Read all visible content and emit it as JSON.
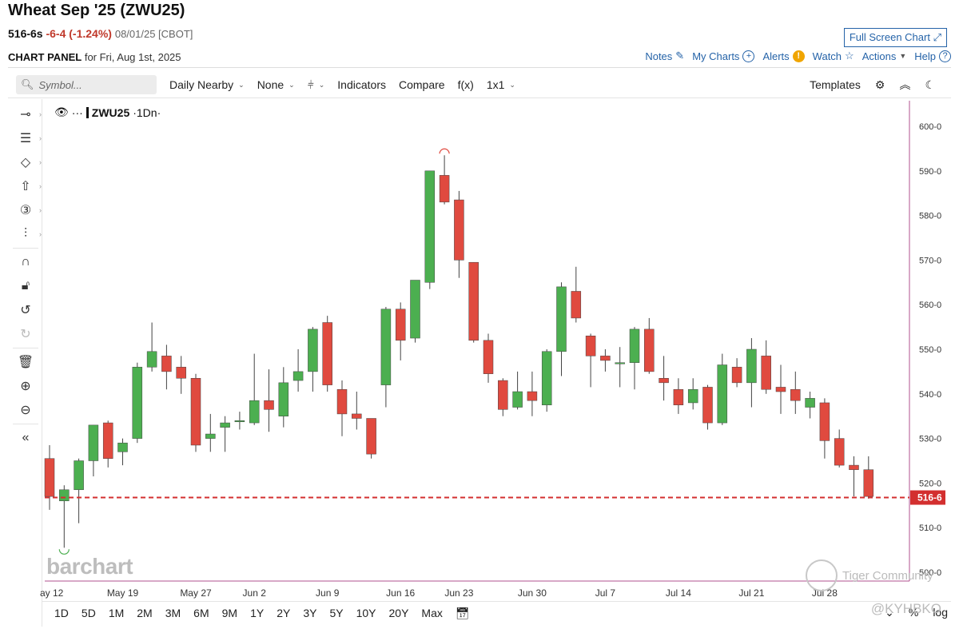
{
  "header": {
    "title": "Wheat Sep '25 (ZWU25)",
    "last": "516-6s",
    "change": "-6-4 (-1.24%)",
    "meta": "08/01/25 [CBOT]",
    "fullscreen_label": "Full Screen Chart",
    "panel_label": "CHART PANEL",
    "panel_date": "for Fri, Aug 1st, 2025"
  },
  "top_links": {
    "notes": "Notes",
    "mycharts": "My Charts",
    "alerts": "Alerts",
    "watch": "Watch",
    "actions": "Actions",
    "help": "Help"
  },
  "toolbar": {
    "search_placeholder": "Symbol...",
    "period": "Daily Nearby",
    "none": "None",
    "indicators": "Indicators",
    "compare": "Compare",
    "fx": "f(x)",
    "layout": "1x1",
    "templates": "Templates"
  },
  "legend": {
    "symbol": "ZWU25",
    "interval": "·1Dn·"
  },
  "ranges": [
    "1D",
    "5D",
    "1M",
    "2M",
    "3M",
    "6M",
    "9M",
    "1Y",
    "2Y",
    "3Y",
    "5Y",
    "10Y",
    "20Y",
    "Max"
  ],
  "bottom_right": {
    "pct": "%",
    "log": "log"
  },
  "watermarks": {
    "brand": "barchart",
    "community": "Tiger Community",
    "handle": "@KYHBKO"
  },
  "colors": {
    "up": "#4caf50",
    "down": "#e04a3f",
    "accent": "#2563a8",
    "price_line": "#d32f2f",
    "axis_border": "#b0508f"
  },
  "chart_data": {
    "type": "candlestick",
    "symbol": "ZWU25",
    "ylim": [
      500,
      605
    ],
    "yticks": [
      600,
      590,
      580,
      570,
      560,
      550,
      540,
      530,
      520,
      510,
      500
    ],
    "ytick_labels": [
      "600-0",
      "590-0",
      "580-0",
      "570-0",
      "560-0",
      "550-0",
      "540-0",
      "530-0",
      "520-0",
      "510-0",
      "500-0"
    ],
    "last_price": 516.75,
    "last_label": "516-6",
    "xtick_labels": [
      {
        "label": "ay 12",
        "index": 0
      },
      {
        "label": "May 19",
        "index": 5
      },
      {
        "label": "May 27",
        "index": 10
      },
      {
        "label": "Jun 2",
        "index": 14
      },
      {
        "label": "Jun 9",
        "index": 19
      },
      {
        "label": "Jun 16",
        "index": 24
      },
      {
        "label": "Jun 23",
        "index": 28
      },
      {
        "label": "Jun 30",
        "index": 33
      },
      {
        "label": "Jul 7",
        "index": 38
      },
      {
        "label": "Jul 14",
        "index": 43
      },
      {
        "label": "Jul 21",
        "index": 48
      },
      {
        "label": "Jul 28",
        "index": 53
      }
    ],
    "candles": [
      {
        "o": 525.5,
        "h": 528.5,
        "l": 514,
        "c": 517
      },
      {
        "o": 516,
        "h": 519.5,
        "l": 505.5,
        "c": 518.5
      },
      {
        "o": 518.5,
        "h": 525.5,
        "l": 511,
        "c": 525
      },
      {
        "o": 525,
        "h": 533,
        "l": 521.5,
        "c": 533
      },
      {
        "o": 533.5,
        "h": 534,
        "l": 523.5,
        "c": 525.5
      },
      {
        "o": 527,
        "h": 530,
        "l": 524,
        "c": 529
      },
      {
        "o": 530,
        "h": 547,
        "l": 529,
        "c": 546
      },
      {
        "o": 546,
        "h": 556,
        "l": 545,
        "c": 549.5
      },
      {
        "o": 548.5,
        "h": 551,
        "l": 541,
        "c": 545
      },
      {
        "o": 546,
        "h": 548.5,
        "l": 540,
        "c": 543.5
      },
      {
        "o": 543.5,
        "h": 544.5,
        "l": 527,
        "c": 528.5
      },
      {
        "o": 530,
        "h": 535.5,
        "l": 527,
        "c": 531
      },
      {
        "o": 532.5,
        "h": 535,
        "l": 527,
        "c": 533.5
      },
      {
        "o": 534,
        "h": 536,
        "l": 532,
        "c": 534
      },
      {
        "o": 533.5,
        "h": 549,
        "l": 533,
        "c": 538.5
      },
      {
        "o": 538.5,
        "h": 545.5,
        "l": 531.5,
        "c": 536.5
      },
      {
        "o": 535,
        "h": 546,
        "l": 532.5,
        "c": 542.5
      },
      {
        "o": 543,
        "h": 550,
        "l": 540.5,
        "c": 545
      },
      {
        "o": 545,
        "h": 555,
        "l": 540.5,
        "c": 554.5
      },
      {
        "o": 556,
        "h": 557.5,
        "l": 540.5,
        "c": 542
      },
      {
        "o": 541,
        "h": 543,
        "l": 530.5,
        "c": 535.5
      },
      {
        "o": 535.5,
        "h": 540.5,
        "l": 532,
        "c": 534.5
      },
      {
        "o": 534.5,
        "h": 534.5,
        "l": 525.5,
        "c": 526.5
      },
      {
        "o": 542,
        "h": 559.5,
        "l": 537,
        "c": 559
      },
      {
        "o": 559,
        "h": 560.5,
        "l": 547.5,
        "c": 552
      },
      {
        "o": 552.5,
        "h": 565.5,
        "l": 551.5,
        "c": 565.5
      },
      {
        "o": 565,
        "h": 590,
        "l": 563.5,
        "c": 590
      },
      {
        "o": 589,
        "h": 593.5,
        "l": 582.5,
        "c": 583
      },
      {
        "o": 583.5,
        "h": 585.5,
        "l": 566,
        "c": 570
      },
      {
        "o": 569.5,
        "h": 569.5,
        "l": 551.5,
        "c": 552
      },
      {
        "o": 552,
        "h": 553.5,
        "l": 542.5,
        "c": 544.5
      },
      {
        "o": 543,
        "h": 543.5,
        "l": 535,
        "c": 536.5
      },
      {
        "o": 537,
        "h": 545,
        "l": 536.5,
        "c": 540.5
      },
      {
        "o": 540.5,
        "h": 545,
        "l": 535,
        "c": 538.5
      },
      {
        "o": 537.5,
        "h": 550,
        "l": 536,
        "c": 549.5
      },
      {
        "o": 549.5,
        "h": 565,
        "l": 544,
        "c": 564
      },
      {
        "o": 563,
        "h": 568.5,
        "l": 556,
        "c": 557
      },
      {
        "o": 553,
        "h": 553.5,
        "l": 541.5,
        "c": 548.5
      },
      {
        "o": 548.5,
        "h": 550,
        "l": 545,
        "c": 547.5
      },
      {
        "o": 547,
        "h": 550.5,
        "l": 541.5,
        "c": 547
      },
      {
        "o": 547,
        "h": 555,
        "l": 541,
        "c": 554.5
      },
      {
        "o": 554.5,
        "h": 557,
        "l": 544.5,
        "c": 545
      },
      {
        "o": 543.5,
        "h": 548.5,
        "l": 538.5,
        "c": 542.5
      },
      {
        "o": 541,
        "h": 543.5,
        "l": 535.5,
        "c": 537.5
      },
      {
        "o": 538,
        "h": 543.5,
        "l": 536.5,
        "c": 541
      },
      {
        "o": 541.5,
        "h": 542,
        "l": 532,
        "c": 533.5
      },
      {
        "o": 533.5,
        "h": 549,
        "l": 533,
        "c": 546.5
      },
      {
        "o": 546,
        "h": 548,
        "l": 541.5,
        "c": 542.5
      },
      {
        "o": 542.5,
        "h": 552.5,
        "l": 537,
        "c": 550
      },
      {
        "o": 548.5,
        "h": 552,
        "l": 540,
        "c": 541
      },
      {
        "o": 541.5,
        "h": 546.5,
        "l": 535.5,
        "c": 540.5
      },
      {
        "o": 541,
        "h": 545,
        "l": 535.5,
        "c": 538.5
      },
      {
        "o": 537,
        "h": 540.5,
        "l": 534.5,
        "c": 539
      },
      {
        "o": 538,
        "h": 539,
        "l": 525.5,
        "c": 529.5
      },
      {
        "o": 530,
        "h": 532,
        "l": 523.5,
        "c": 524
      },
      {
        "o": 524,
        "h": 526,
        "l": 517,
        "c": 523
      },
      {
        "o": 523,
        "h": 526,
        "l": 516.5,
        "c": 517
      }
    ]
  }
}
